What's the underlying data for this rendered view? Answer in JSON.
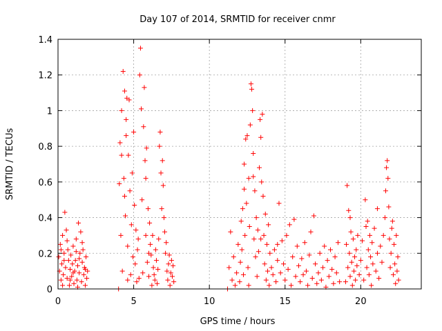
{
  "chart_data": {
    "type": "scatter",
    "title": "Day 107 of 2014, SRMTID for receiver cnmr",
    "xlabel": "GPS time / hours",
    "ylabel": "SRMTID / TECUs",
    "xlim": [
      0,
      24
    ],
    "ylim": [
      0,
      1.4
    ],
    "xticks": [
      0,
      5,
      10,
      15,
      20
    ],
    "yticks": [
      0,
      0.2,
      0.4,
      0.6,
      0.8,
      1,
      1.2,
      1.4
    ],
    "xtick_labels": [
      "0",
      "5",
      "10",
      "15",
      "20"
    ],
    "ytick_labels": [
      "0",
      "0.2",
      "0.4",
      "0.6",
      "0.8",
      "1",
      "1.2",
      "1.4"
    ],
    "grid": true,
    "marker": "+",
    "colors": {
      "points": "#ff0000",
      "grid": "#a0a0a0",
      "axis": "#000000"
    },
    "series": [
      {
        "name": "SRMTID",
        "points": [
          [
            0.05,
            0.18
          ],
          [
            0.1,
            0.1
          ],
          [
            0.15,
            0.25
          ],
          [
            0.2,
            0.05
          ],
          [
            0.25,
            0.14
          ],
          [
            0.3,
            0.3
          ],
          [
            0.35,
            0.08
          ],
          [
            0.4,
            0.2
          ],
          [
            0.45,
            0.43
          ],
          [
            0.5,
            0.12
          ],
          [
            0.55,
            0.33
          ],
          [
            0.6,
            0.06
          ],
          [
            0.65,
            0.22
          ],
          [
            0.7,
            0.16
          ],
          [
            0.75,
            0.02
          ],
          [
            0.8,
            0.11
          ],
          [
            0.85,
            0.19
          ],
          [
            0.9,
            0.07
          ],
          [
            0.95,
            0.14
          ],
          [
            1.0,
            0.24
          ],
          [
            1.05,
            0.03
          ],
          [
            1.1,
            0.1
          ],
          [
            1.15,
            0.16
          ],
          [
            1.2,
            0.28
          ],
          [
            1.25,
            0.05
          ],
          [
            1.3,
            0.13
          ],
          [
            1.35,
            0.37
          ],
          [
            1.4,
            0.09
          ],
          [
            1.45,
            0.2
          ],
          [
            1.5,
            0.32
          ],
          [
            1.55,
            0.04
          ],
          [
            1.6,
            0.15
          ],
          [
            1.65,
            0.22
          ],
          [
            1.7,
            0.08
          ],
          [
            1.75,
            0.12
          ],
          [
            1.8,
            0.02
          ],
          [
            1.85,
            0.18
          ],
          [
            1.9,
            0.06
          ],
          [
            1.95,
            0.1
          ],
          [
            0.2,
            0.22
          ],
          [
            0.4,
            0.16
          ],
          [
            0.6,
            0.27
          ],
          [
            0.8,
            0.05
          ],
          [
            1.0,
            0.09
          ],
          [
            1.2,
            0.21
          ],
          [
            1.4,
            0.17
          ],
          [
            1.6,
            0.26
          ],
          [
            1.8,
            0.11
          ],
          [
            0.3,
            0.02
          ],
          [
            1.3,
            0.01
          ],
          [
            4.0,
            0.0
          ],
          [
            4.05,
            0.59
          ],
          [
            4.1,
            0.82
          ],
          [
            4.15,
            0.3
          ],
          [
            4.2,
            1.0
          ],
          [
            4.25,
            0.1
          ],
          [
            4.3,
            1.22
          ],
          [
            4.35,
            0.62
          ],
          [
            4.4,
            1.11
          ],
          [
            4.45,
            0.41
          ],
          [
            4.5,
            0.86
          ],
          [
            4.55,
            1.07
          ],
          [
            4.6,
            0.24
          ],
          [
            4.65,
            0.75
          ],
          [
            4.7,
            1.06
          ],
          [
            4.75,
            0.55
          ],
          [
            4.8,
            0.08
          ],
          [
            4.85,
            0.36
          ],
          [
            4.9,
            0.65
          ],
          [
            4.95,
            0.18
          ],
          [
            5.0,
            0.88
          ],
          [
            5.05,
            0.47
          ],
          [
            5.1,
            0.14
          ],
          [
            5.15,
            0.33
          ],
          [
            5.2,
            0.04
          ],
          [
            5.25,
            0.22
          ],
          [
            5.3,
            0.28
          ],
          [
            5.35,
            0.06
          ],
          [
            5.4,
            1.2
          ],
          [
            5.45,
            1.35
          ],
          [
            5.5,
            1.01
          ],
          [
            5.55,
            0.5
          ],
          [
            5.6,
            0.09
          ],
          [
            5.65,
            0.91
          ],
          [
            5.7,
            1.13
          ],
          [
            5.75,
            0.72
          ],
          [
            5.8,
            0.3
          ],
          [
            5.85,
            0.79
          ],
          [
            5.9,
            0.15
          ],
          [
            5.95,
            0.45
          ],
          [
            6.0,
            0.07
          ],
          [
            6.05,
            0.37
          ],
          [
            6.1,
            0.25
          ],
          [
            6.15,
            0.19
          ],
          [
            6.2,
            0.02
          ],
          [
            6.25,
            0.3
          ],
          [
            6.3,
            0.12
          ],
          [
            6.35,
            0.08
          ],
          [
            6.4,
            0.05
          ],
          [
            6.45,
            0.22
          ],
          [
            6.5,
            0.16
          ],
          [
            6.55,
            0.03
          ],
          [
            6.6,
            0.11
          ],
          [
            6.65,
            0.28
          ],
          [
            6.7,
            0.8
          ],
          [
            6.75,
            0.88
          ],
          [
            6.8,
            0.65
          ],
          [
            6.85,
            0.45
          ],
          [
            6.9,
            0.72
          ],
          [
            6.95,
            0.58
          ],
          [
            7.0,
            0.4
          ],
          [
            7.05,
            0.32
          ],
          [
            7.1,
            0.2
          ],
          [
            7.15,
            0.26
          ],
          [
            7.2,
            0.1
          ],
          [
            7.25,
            0.05
          ],
          [
            7.3,
            0.14
          ],
          [
            7.35,
            0.19
          ],
          [
            7.4,
            0.02
          ],
          [
            7.45,
            0.09
          ],
          [
            7.5,
            0.16
          ],
          [
            7.55,
            0.07
          ],
          [
            7.6,
            0.13
          ],
          [
            7.65,
            0.04
          ],
          [
            4.2,
            0.75
          ],
          [
            4.4,
            0.52
          ],
          [
            4.6,
            0.05
          ],
          [
            5.8,
            0.62
          ],
          [
            6.0,
            0.2
          ],
          [
            4.5,
            0.95
          ],
          [
            11.2,
            0.0
          ],
          [
            11.3,
            0.12
          ],
          [
            11.4,
            0.32
          ],
          [
            11.5,
            0.05
          ],
          [
            11.6,
            0.18
          ],
          [
            11.7,
            0.02
          ],
          [
            11.8,
            0.09
          ],
          [
            11.9,
            0.25
          ],
          [
            12.0,
            0.04
          ],
          [
            12.05,
            0.15
          ],
          [
            12.1,
            0.38
          ],
          [
            12.15,
            0.22
          ],
          [
            12.2,
            0.45
          ],
          [
            12.25,
            0.08
          ],
          [
            12.3,
            0.56
          ],
          [
            12.35,
            0.3
          ],
          [
            12.4,
            0.84
          ],
          [
            12.45,
            0.48
          ],
          [
            12.5,
            0.86
          ],
          [
            12.55,
            0.12
          ],
          [
            12.6,
            0.62
          ],
          [
            12.65,
            0.35
          ],
          [
            12.7,
            0.92
          ],
          [
            12.75,
            1.15
          ],
          [
            12.8,
            1.12
          ],
          [
            12.85,
            1.0
          ],
          [
            12.9,
            0.76
          ],
          [
            12.95,
            0.28
          ],
          [
            13.0,
            0.55
          ],
          [
            13.05,
            0.18
          ],
          [
            13.1,
            0.4
          ],
          [
            13.15,
            0.07
          ],
          [
            13.2,
            0.33
          ],
          [
            13.25,
            0.21
          ],
          [
            13.3,
            0.68
          ],
          [
            13.35,
            0.95
          ],
          [
            13.4,
            0.85
          ],
          [
            13.45,
            0.6
          ],
          [
            13.5,
            0.98
          ],
          [
            13.55,
            0.52
          ],
          [
            13.6,
            0.3
          ],
          [
            13.65,
            0.14
          ],
          [
            13.7,
            0.42
          ],
          [
            13.75,
            0.05
          ],
          [
            13.8,
            0.25
          ],
          [
            13.85,
            0.1
          ],
          [
            13.9,
            0.36
          ],
          [
            13.95,
            0.02
          ],
          [
            14.0,
            0.2
          ],
          [
            14.1,
            0.12
          ],
          [
            14.2,
            0.08
          ],
          [
            14.3,
            0.22
          ],
          [
            14.4,
            0.04
          ],
          [
            14.5,
            0.16
          ],
          [
            14.6,
            0.48
          ],
          [
            14.7,
            0.09
          ],
          [
            14.8,
            0.27
          ],
          [
            14.9,
            0.14
          ],
          [
            15.0,
            0.05
          ],
          [
            15.1,
            0.3
          ],
          [
            15.2,
            0.11
          ],
          [
            15.3,
            0.36
          ],
          [
            15.4,
            0.02
          ],
          [
            15.5,
            0.18
          ],
          [
            15.6,
            0.39
          ],
          [
            15.7,
            0.07
          ],
          [
            15.8,
            0.24
          ],
          [
            15.9,
            0.13
          ],
          [
            16.0,
            0.04
          ],
          [
            16.1,
            0.17
          ],
          [
            16.2,
            0.08
          ],
          [
            16.3,
            0.26
          ],
          [
            16.4,
            0.1
          ],
          [
            16.5,
            0.02
          ],
          [
            16.6,
            0.19
          ],
          [
            16.7,
            0.32
          ],
          [
            16.8,
            0.06
          ],
          [
            16.9,
            0.41
          ],
          [
            17.0,
            0.14
          ],
          [
            17.1,
            0.03
          ],
          [
            17.2,
            0.09
          ],
          [
            17.3,
            0.2
          ],
          [
            17.4,
            0.05
          ],
          [
            17.5,
            0.12
          ],
          [
            17.6,
            0.24
          ],
          [
            17.7,
            0.01
          ],
          [
            17.8,
            0.16
          ],
          [
            17.9,
            0.07
          ],
          [
            18.0,
            0.22
          ],
          [
            18.1,
            0.11
          ],
          [
            18.2,
            0.03
          ],
          [
            18.3,
            0.18
          ],
          [
            18.4,
            0.09
          ],
          [
            18.5,
            0.26
          ],
          [
            18.6,
            0.04
          ],
          [
            12.3,
            0.7
          ],
          [
            12.9,
            0.63
          ],
          [
            13.4,
            0.28
          ],
          [
            12.6,
            0.02
          ],
          [
            14.5,
            0.25
          ],
          [
            19.0,
            0.04
          ],
          [
            19.05,
            0.25
          ],
          [
            19.1,
            0.58
          ],
          [
            19.15,
            0.12
          ],
          [
            19.2,
            0.44
          ],
          [
            19.25,
            0.2
          ],
          [
            19.3,
            0.07
          ],
          [
            19.35,
            0.32
          ],
          [
            19.4,
            0.15
          ],
          [
            19.45,
            0.02
          ],
          [
            19.5,
            0.28
          ],
          [
            19.55,
            0.1
          ],
          [
            19.6,
            0.18
          ],
          [
            19.65,
            0.05
          ],
          [
            19.7,
            0.22
          ],
          [
            19.75,
            0.13
          ],
          [
            19.8,
            0.3
          ],
          [
            19.9,
            0.08
          ],
          [
            20.0,
            0.16
          ],
          [
            20.1,
            0.27
          ],
          [
            20.2,
            0.05
          ],
          [
            20.3,
            0.5
          ],
          [
            20.35,
            0.35
          ],
          [
            20.4,
            0.12
          ],
          [
            20.45,
            0.38
          ],
          [
            20.5,
            0.22
          ],
          [
            20.55,
            0.08
          ],
          [
            20.6,
            0.3
          ],
          [
            20.65,
            0.18
          ],
          [
            20.7,
            0.02
          ],
          [
            20.75,
            0.26
          ],
          [
            20.8,
            0.14
          ],
          [
            20.9,
            0.34
          ],
          [
            21.0,
            0.1
          ],
          [
            21.1,
            0.2
          ],
          [
            21.2,
            0.06
          ],
          [
            21.3,
            0.24
          ],
          [
            21.4,
            0.15
          ],
          [
            21.5,
            0.3
          ],
          [
            21.6,
            0.4
          ],
          [
            21.65,
            0.55
          ],
          [
            21.7,
            0.68
          ],
          [
            21.75,
            0.72
          ],
          [
            21.8,
            0.62
          ],
          [
            21.85,
            0.46
          ],
          [
            21.9,
            0.28
          ],
          [
            21.95,
            0.12
          ],
          [
            22.0,
            0.2
          ],
          [
            22.05,
            0.34
          ],
          [
            22.1,
            0.38
          ],
          [
            22.15,
            0.08
          ],
          [
            22.2,
            0.25
          ],
          [
            22.25,
            0.14
          ],
          [
            22.3,
            0.03
          ],
          [
            22.35,
            0.3
          ],
          [
            22.4,
            0.1
          ],
          [
            22.45,
            0.18
          ],
          [
            22.5,
            0.05
          ],
          [
            19.3,
            0.4
          ],
          [
            21.1,
            0.45
          ]
        ]
      }
    ]
  }
}
